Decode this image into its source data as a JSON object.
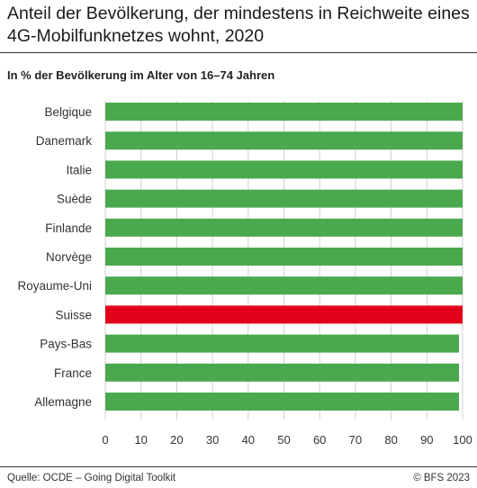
{
  "header": {
    "title": "Anteil der Bevölkerung, der mindestens in Reichweite eines 4G-Mobilfunknetzes wohnt, 2020",
    "subtitle": "In % der Bevölkerung im Alter von 16–74 Jahren"
  },
  "footer": {
    "source": "Quelle: OCDE – Going Digital Toolkit",
    "copyright": "© BFS 2023"
  },
  "colors": {
    "bar": "#4aa84f",
    "highlight": "#e2001a",
    "grid": "#d0d0d0"
  },
  "chart_data": {
    "type": "bar",
    "orientation": "horizontal",
    "categories": [
      "Belgique",
      "Danemark",
      "Italie",
      "Suède",
      "Finlande",
      "Norvège",
      "Royaume-Uni",
      "Suisse",
      "Pays-Bas",
      "France",
      "Allemagne"
    ],
    "values": [
      100,
      100,
      100,
      100,
      100,
      100,
      100,
      100,
      99,
      99,
      99
    ],
    "highlight": "Suisse",
    "xlim": [
      0,
      100
    ],
    "xticks": [
      0,
      10,
      20,
      30,
      40,
      50,
      60,
      70,
      80,
      90,
      100
    ],
    "grid": true
  }
}
